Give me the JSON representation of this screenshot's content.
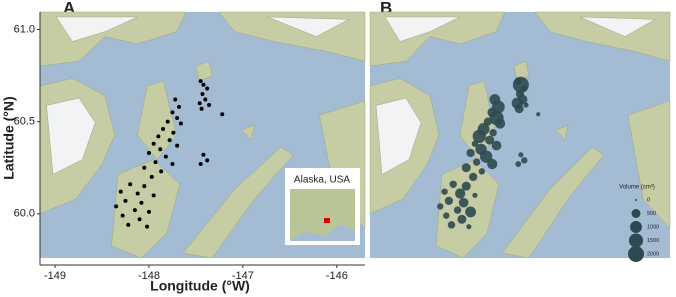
{
  "chart_data": [
    {
      "type": "scatter",
      "panel": "A",
      "xlabel": "Longitude (°W)",
      "ylabel": "Latitude (°N)",
      "xlim": [
        -149.16,
        -145.7
      ],
      "ylim": [
        59.76,
        61.095
      ],
      "xticks": [
        -149,
        -148,
        -147,
        -146
      ],
      "yticks": [
        {
          "value": 61,
          "label": "61.0"
        },
        {
          "value": 60.5,
          "label": "60.5"
        },
        {
          "value": 60,
          "label": "60.0"
        }
      ],
      "inset_label": "Alaska, USA",
      "color": "#000000",
      "x": [
        -147.45,
        -147.42,
        -147.38,
        -147.43,
        -147.4,
        -147.46,
        -147.36,
        -147.44,
        -147.22,
        -147.72,
        -147.68,
        -147.75,
        -147.7,
        -147.8,
        -147.66,
        -147.85,
        -147.74,
        -147.9,
        -147.78,
        -147.95,
        -147.7,
        -147.88,
        -148.0,
        -147.82,
        -147.93,
        -147.75,
        -148.05,
        -147.87,
        -147.97,
        -147.42,
        -147.38,
        -147.45,
        -148.2,
        -148.05,
        -148.3,
        -148.12,
        -147.95,
        -148.25,
        -148.08,
        -148.35,
        -148.15,
        -148.0,
        -148.28,
        -148.1,
        -148.22,
        -148.02
      ],
      "y": [
        60.72,
        60.7,
        60.68,
        60.65,
        60.62,
        60.6,
        60.59,
        60.57,
        60.54,
        60.62,
        60.58,
        60.55,
        60.52,
        60.5,
        60.49,
        60.46,
        60.44,
        60.42,
        60.4,
        60.38,
        60.37,
        60.35,
        60.33,
        60.31,
        60.28,
        60.27,
        60.25,
        60.23,
        60.2,
        60.32,
        60.29,
        60.27,
        60.16,
        60.15,
        60.12,
        60.11,
        60.1,
        60.07,
        60.06,
        60.04,
        60.02,
        60.01,
        59.99,
        59.97,
        59.94,
        59.93
      ]
    },
    {
      "type": "bubble",
      "panel": "B",
      "xlim": [
        -149.16,
        -145.7
      ],
      "ylim": [
        59.76,
        61.095
      ],
      "color": "#2d4a50",
      "x": [
        -147.45,
        -147.42,
        -147.38,
        -147.43,
        -147.4,
        -147.46,
        -147.36,
        -147.44,
        -147.22,
        -147.72,
        -147.68,
        -147.75,
        -147.7,
        -147.8,
        -147.66,
        -147.85,
        -147.74,
        -147.9,
        -147.78,
        -147.95,
        -147.7,
        -147.88,
        -148.0,
        -147.82,
        -147.93,
        -147.75,
        -148.05,
        -147.87,
        -147.97,
        -147.42,
        -147.38,
        -147.45,
        -148.2,
        -148.05,
        -148.3,
        -148.12,
        -147.95,
        -148.25,
        -148.08,
        -148.35,
        -148.15,
        -148.0,
        -148.28,
        -148.1,
        -148.22,
        -148.02
      ],
      "y": [
        60.72,
        60.7,
        60.68,
        60.65,
        60.62,
        60.6,
        60.59,
        60.57,
        60.54,
        60.62,
        60.58,
        60.55,
        60.52,
        60.5,
        60.49,
        60.46,
        60.44,
        60.42,
        60.4,
        60.38,
        60.37,
        60.35,
        60.33,
        60.31,
        60.28,
        60.27,
        60.25,
        60.23,
        60.2,
        60.32,
        60.29,
        60.27,
        60.16,
        60.15,
        60.12,
        60.11,
        60.1,
        60.07,
        60.06,
        60.04,
        60.02,
        60.01,
        59.99,
        59.97,
        59.94,
        59.93
      ],
      "size": [
        300,
        2000,
        200,
        400,
        600,
        900,
        100,
        500,
        50,
        800,
        1200,
        600,
        1500,
        400,
        700,
        1000,
        300,
        1300,
        500,
        200,
        600,
        900,
        400,
        1100,
        300,
        700,
        500,
        200,
        400,
        100,
        200,
        150,
        300,
        500,
        200,
        700,
        100,
        400,
        600,
        200,
        300,
        800,
        200,
        500,
        300,
        100
      ],
      "size_legend": {
        "title": "Volume (cm³)",
        "values": [
          0,
          500,
          1000,
          1500,
          2000
        ]
      }
    }
  ]
}
